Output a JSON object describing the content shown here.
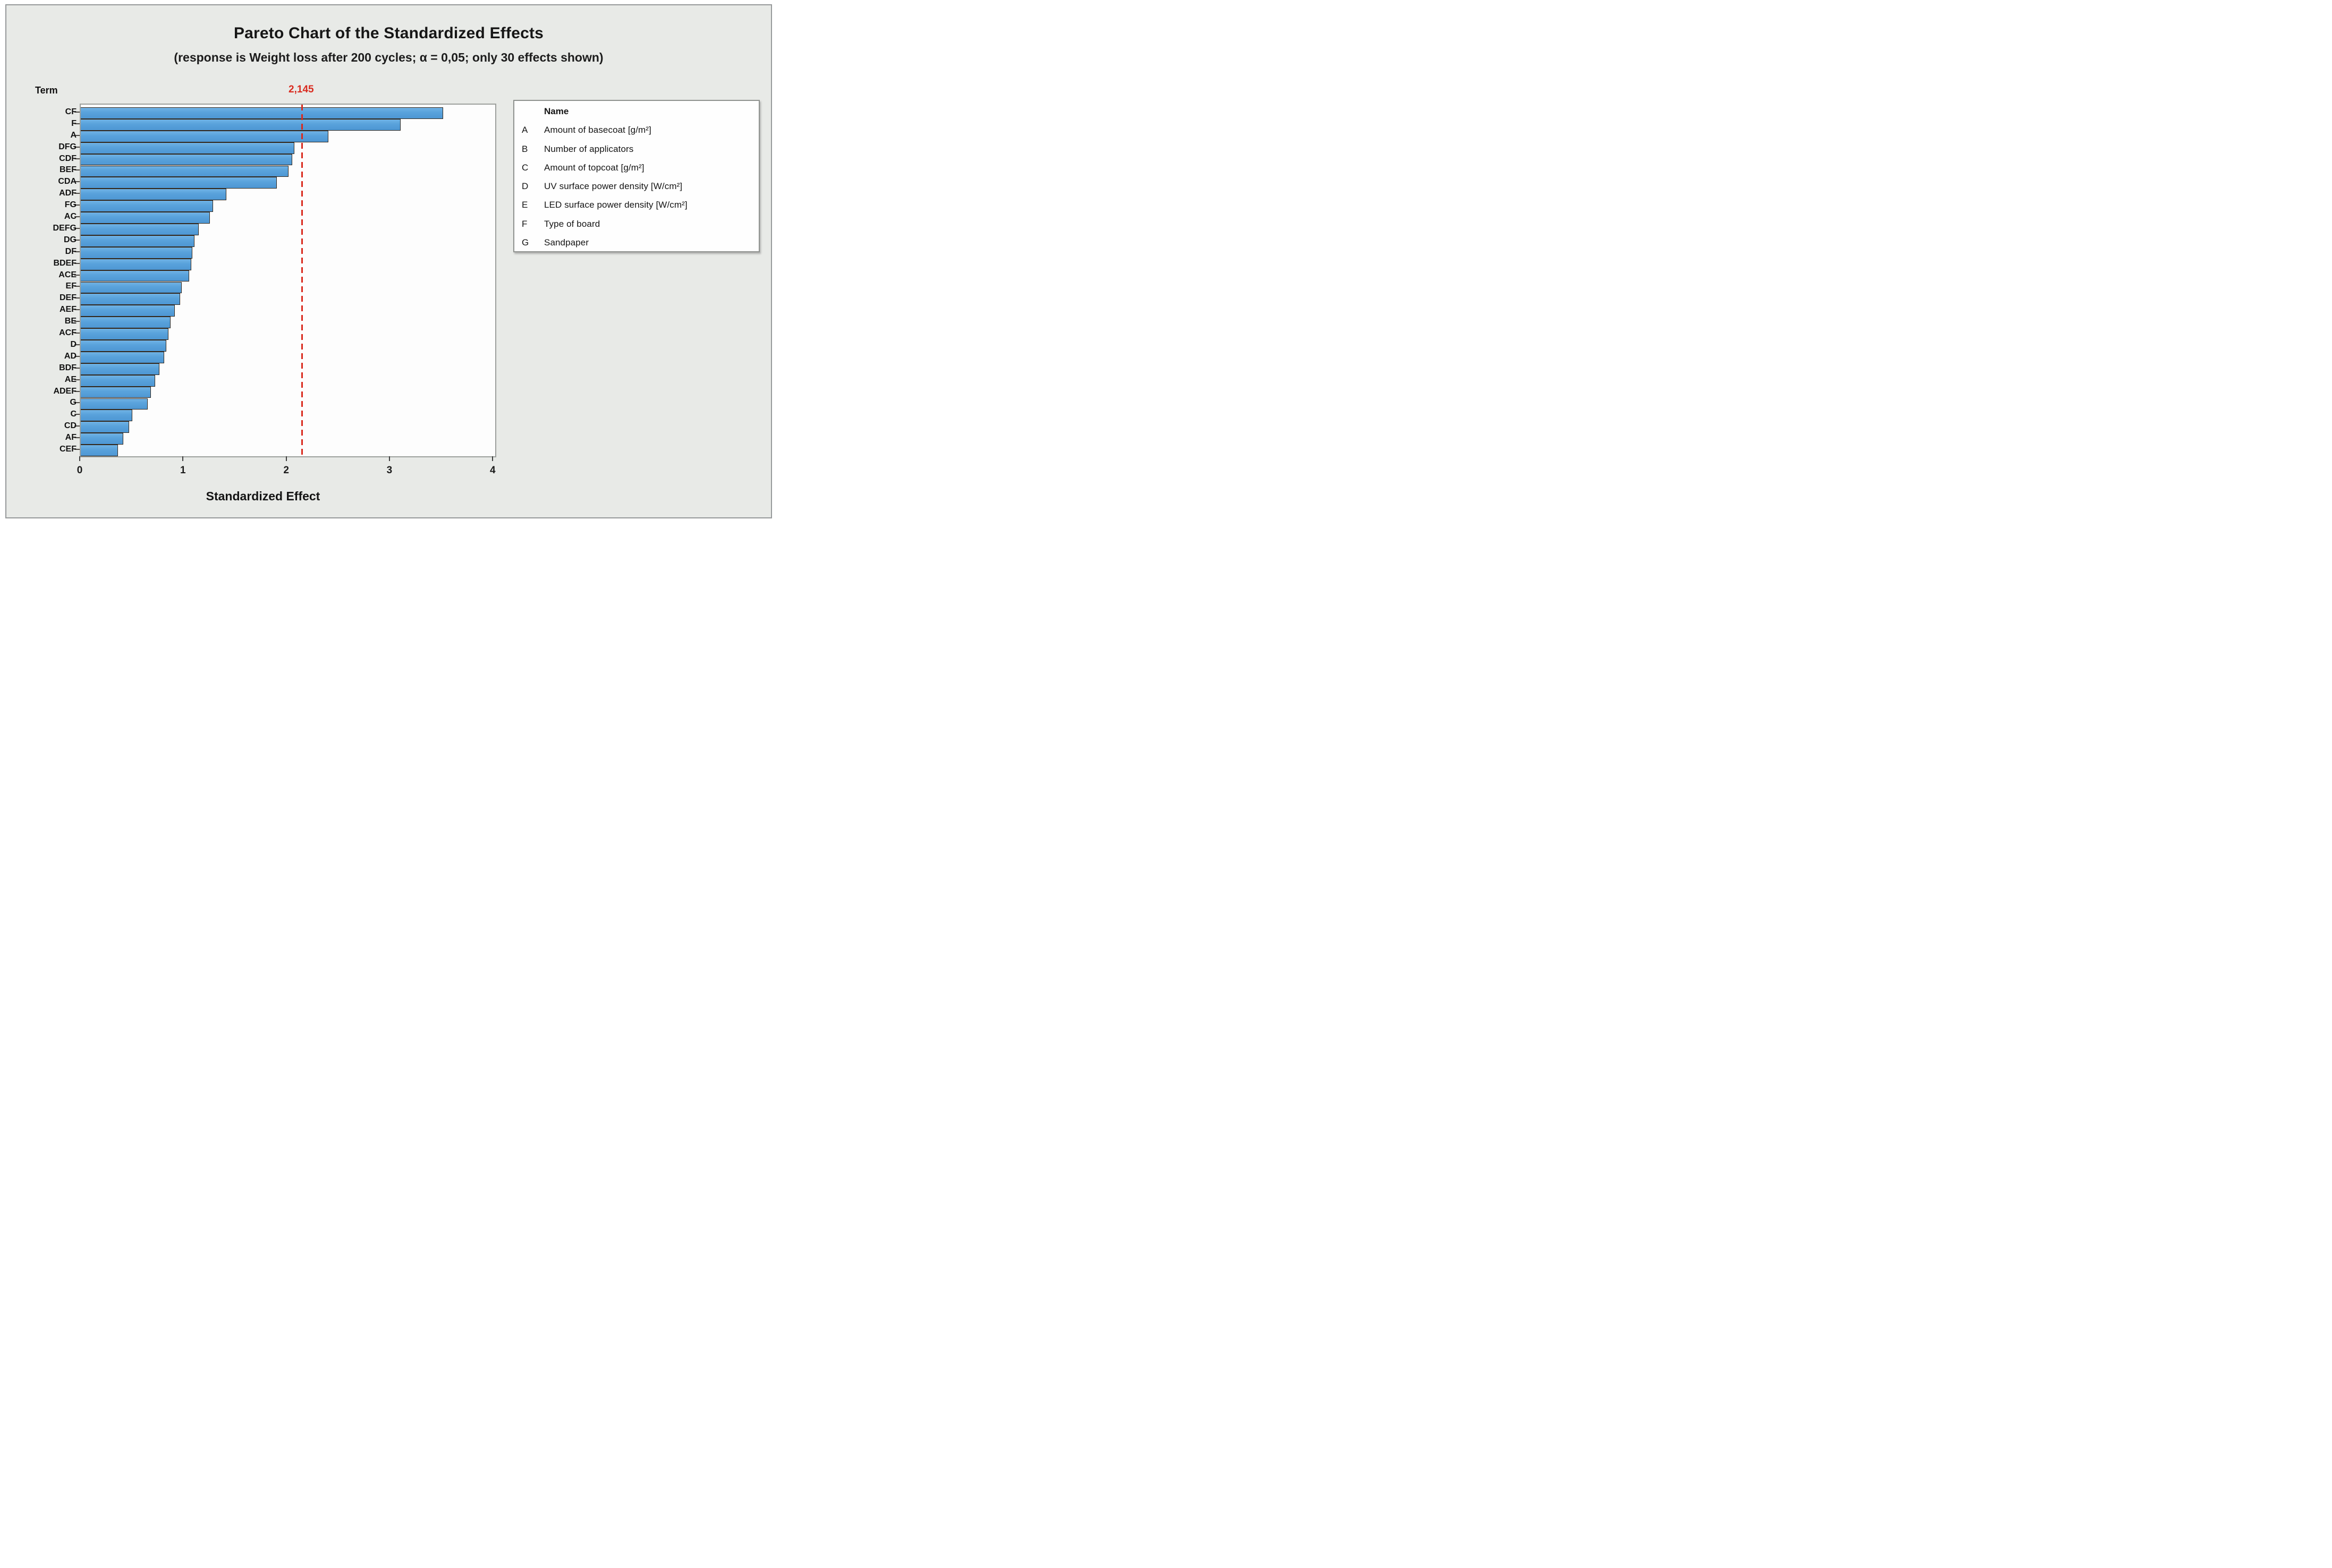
{
  "title": "Pareto Chart of the Standardized Effects",
  "subtitle": "(response is Weight loss after 200 cycles; α = 0,05; only 30 effects shown)",
  "y_axis_header": "Term",
  "x_axis_label": "Standardized Effect",
  "reference_label": "2,145",
  "colors": {
    "bar_fill": "#5ba3dc",
    "bar_border": "#33271b",
    "reference_red": "#d92b1f",
    "panel_background": "#e8eae7",
    "plot_background": "#fdfdfd"
  },
  "legend": {
    "header": "Name",
    "items": [
      {
        "key": "A",
        "name": "Amount of basecoat [g/m²]"
      },
      {
        "key": "B",
        "name": "Number of applicators"
      },
      {
        "key": "C",
        "name": "Amount of topcoat [g/m²]"
      },
      {
        "key": "D",
        "name": "UV surface power density [W/cm²]"
      },
      {
        "key": "E",
        "name": "LED surface power density [W/cm²]"
      },
      {
        "key": "F",
        "name": "Type of board"
      },
      {
        "key": "G",
        "name": "Sandpaper"
      }
    ]
  },
  "chart_data": {
    "type": "bar",
    "orientation": "horizontal",
    "title": "Pareto Chart of the Standardized Effects",
    "subtitle": "(response is Weight loss after 200 cycles; α = 0,05; only 30 effects shown)",
    "xlabel": "Standardized Effect",
    "ylabel": "Term",
    "xlim": [
      0,
      4.02
    ],
    "x_ticks": [
      0,
      1,
      2,
      3,
      4
    ],
    "grid": false,
    "legend_position": "right",
    "reference_line": {
      "value": 2.145,
      "label": "2,145",
      "style": "dashed",
      "color": "#d92b1f"
    },
    "categories": [
      "CF",
      "F",
      "A",
      "DFG",
      "CDF",
      "BEF",
      "CDA",
      "ADF",
      "FG",
      "AC",
      "DEFG",
      "DG",
      "DF",
      "BDEF",
      "ACE",
      "EF",
      "DEF",
      "AEF",
      "BE",
      "ACF",
      "D",
      "AD",
      "BDF",
      "AE",
      "ADEF",
      "G",
      "C",
      "CD",
      "AF",
      "CEF"
    ],
    "values": [
      3.51,
      3.1,
      2.4,
      2.07,
      2.05,
      2.01,
      1.9,
      1.41,
      1.28,
      1.25,
      1.14,
      1.1,
      1.08,
      1.07,
      1.05,
      0.98,
      0.96,
      0.91,
      0.87,
      0.85,
      0.83,
      0.81,
      0.76,
      0.72,
      0.68,
      0.65,
      0.5,
      0.47,
      0.41,
      0.36
    ]
  }
}
